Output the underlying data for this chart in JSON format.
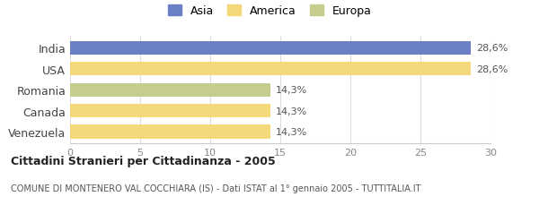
{
  "categories": [
    "Venezuela",
    "Canada",
    "Romania",
    "USA",
    "India"
  ],
  "values": [
    14.3,
    14.3,
    14.3,
    28.6,
    28.6
  ],
  "bar_colors": [
    "#f5d87a",
    "#f5d87a",
    "#c5cc8e",
    "#f5d87a",
    "#6b80c4"
  ],
  "labels": [
    "14,3%",
    "14,3%",
    "14,3%",
    "28,6%",
    "28,6%"
  ],
  "legend_labels": [
    "Asia",
    "America",
    "Europa"
  ],
  "legend_colors": [
    "#6b80c4",
    "#f5d87a",
    "#c5cc8e"
  ],
  "title": "Cittadini Stranieri per Cittadinanza - 2005",
  "subtitle": "COMUNE DI MONTENERO VAL COCCHIARA (IS) - Dati ISTAT al 1° gennaio 2005 - TUTTITALIA.IT",
  "xlim": [
    0,
    30
  ],
  "xticks": [
    0,
    5,
    10,
    15,
    20,
    25,
    30
  ],
  "background_color": "#ffffff"
}
